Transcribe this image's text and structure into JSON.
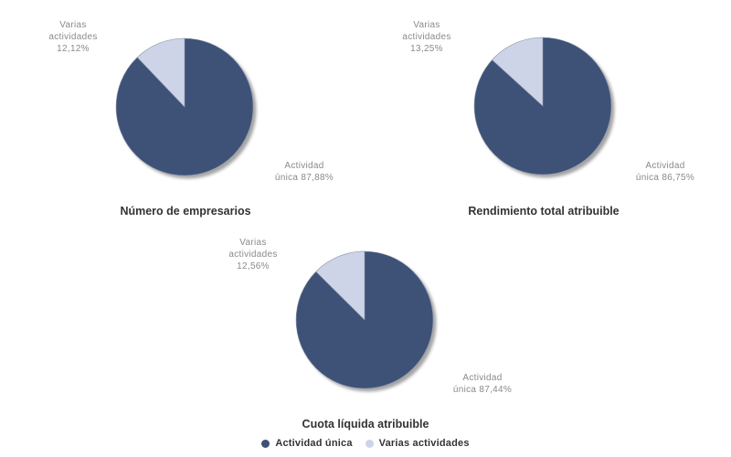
{
  "colors": {
    "dark": "#3E5277",
    "light": "#CDD4E8",
    "stroke": "#9099AC",
    "shadow": "#8E8E8E",
    "label_text": "#8A8A8A",
    "title_text": "#333333"
  },
  "legend": {
    "items": [
      {
        "label": "Actividad única",
        "color": "#3E5277"
      },
      {
        "label": "Varias actividades",
        "color": "#CDD4E8"
      }
    ]
  },
  "chart_data": [
    {
      "type": "pie",
      "title": "Número de empresarios",
      "labels": [
        "Actividad única",
        "Varias actividades"
      ],
      "values": [
        87.88,
        12.12
      ],
      "legend_position": "bottom",
      "slice_labels": {
        "varias": {
          "lines": [
            "Varias",
            "actividades",
            "12,12%"
          ]
        },
        "unica": {
          "lines": [
            "Actividad",
            "única 87,88%"
          ]
        }
      }
    },
    {
      "type": "pie",
      "title": "Rendimiento total atribuible",
      "labels": [
        "Actividad única",
        "Varias actividades"
      ],
      "values": [
        86.75,
        13.25
      ],
      "legend_position": "bottom",
      "slice_labels": {
        "varias": {
          "lines": [
            "Varias",
            "actividades",
            "13,25%"
          ]
        },
        "unica": {
          "lines": [
            "Actividad",
            "única 86,75%"
          ]
        }
      }
    },
    {
      "type": "pie",
      "title": "Cuota líquida atribuible",
      "labels": [
        "Actividad única",
        "Varias actividades"
      ],
      "values": [
        87.44,
        12.56
      ],
      "legend_position": "bottom",
      "slice_labels": {
        "varias": {
          "lines": [
            "Varias",
            "actividades",
            "12,56%"
          ]
        },
        "unica": {
          "lines": [
            "Actividad",
            "única 87,44%"
          ]
        }
      }
    }
  ]
}
